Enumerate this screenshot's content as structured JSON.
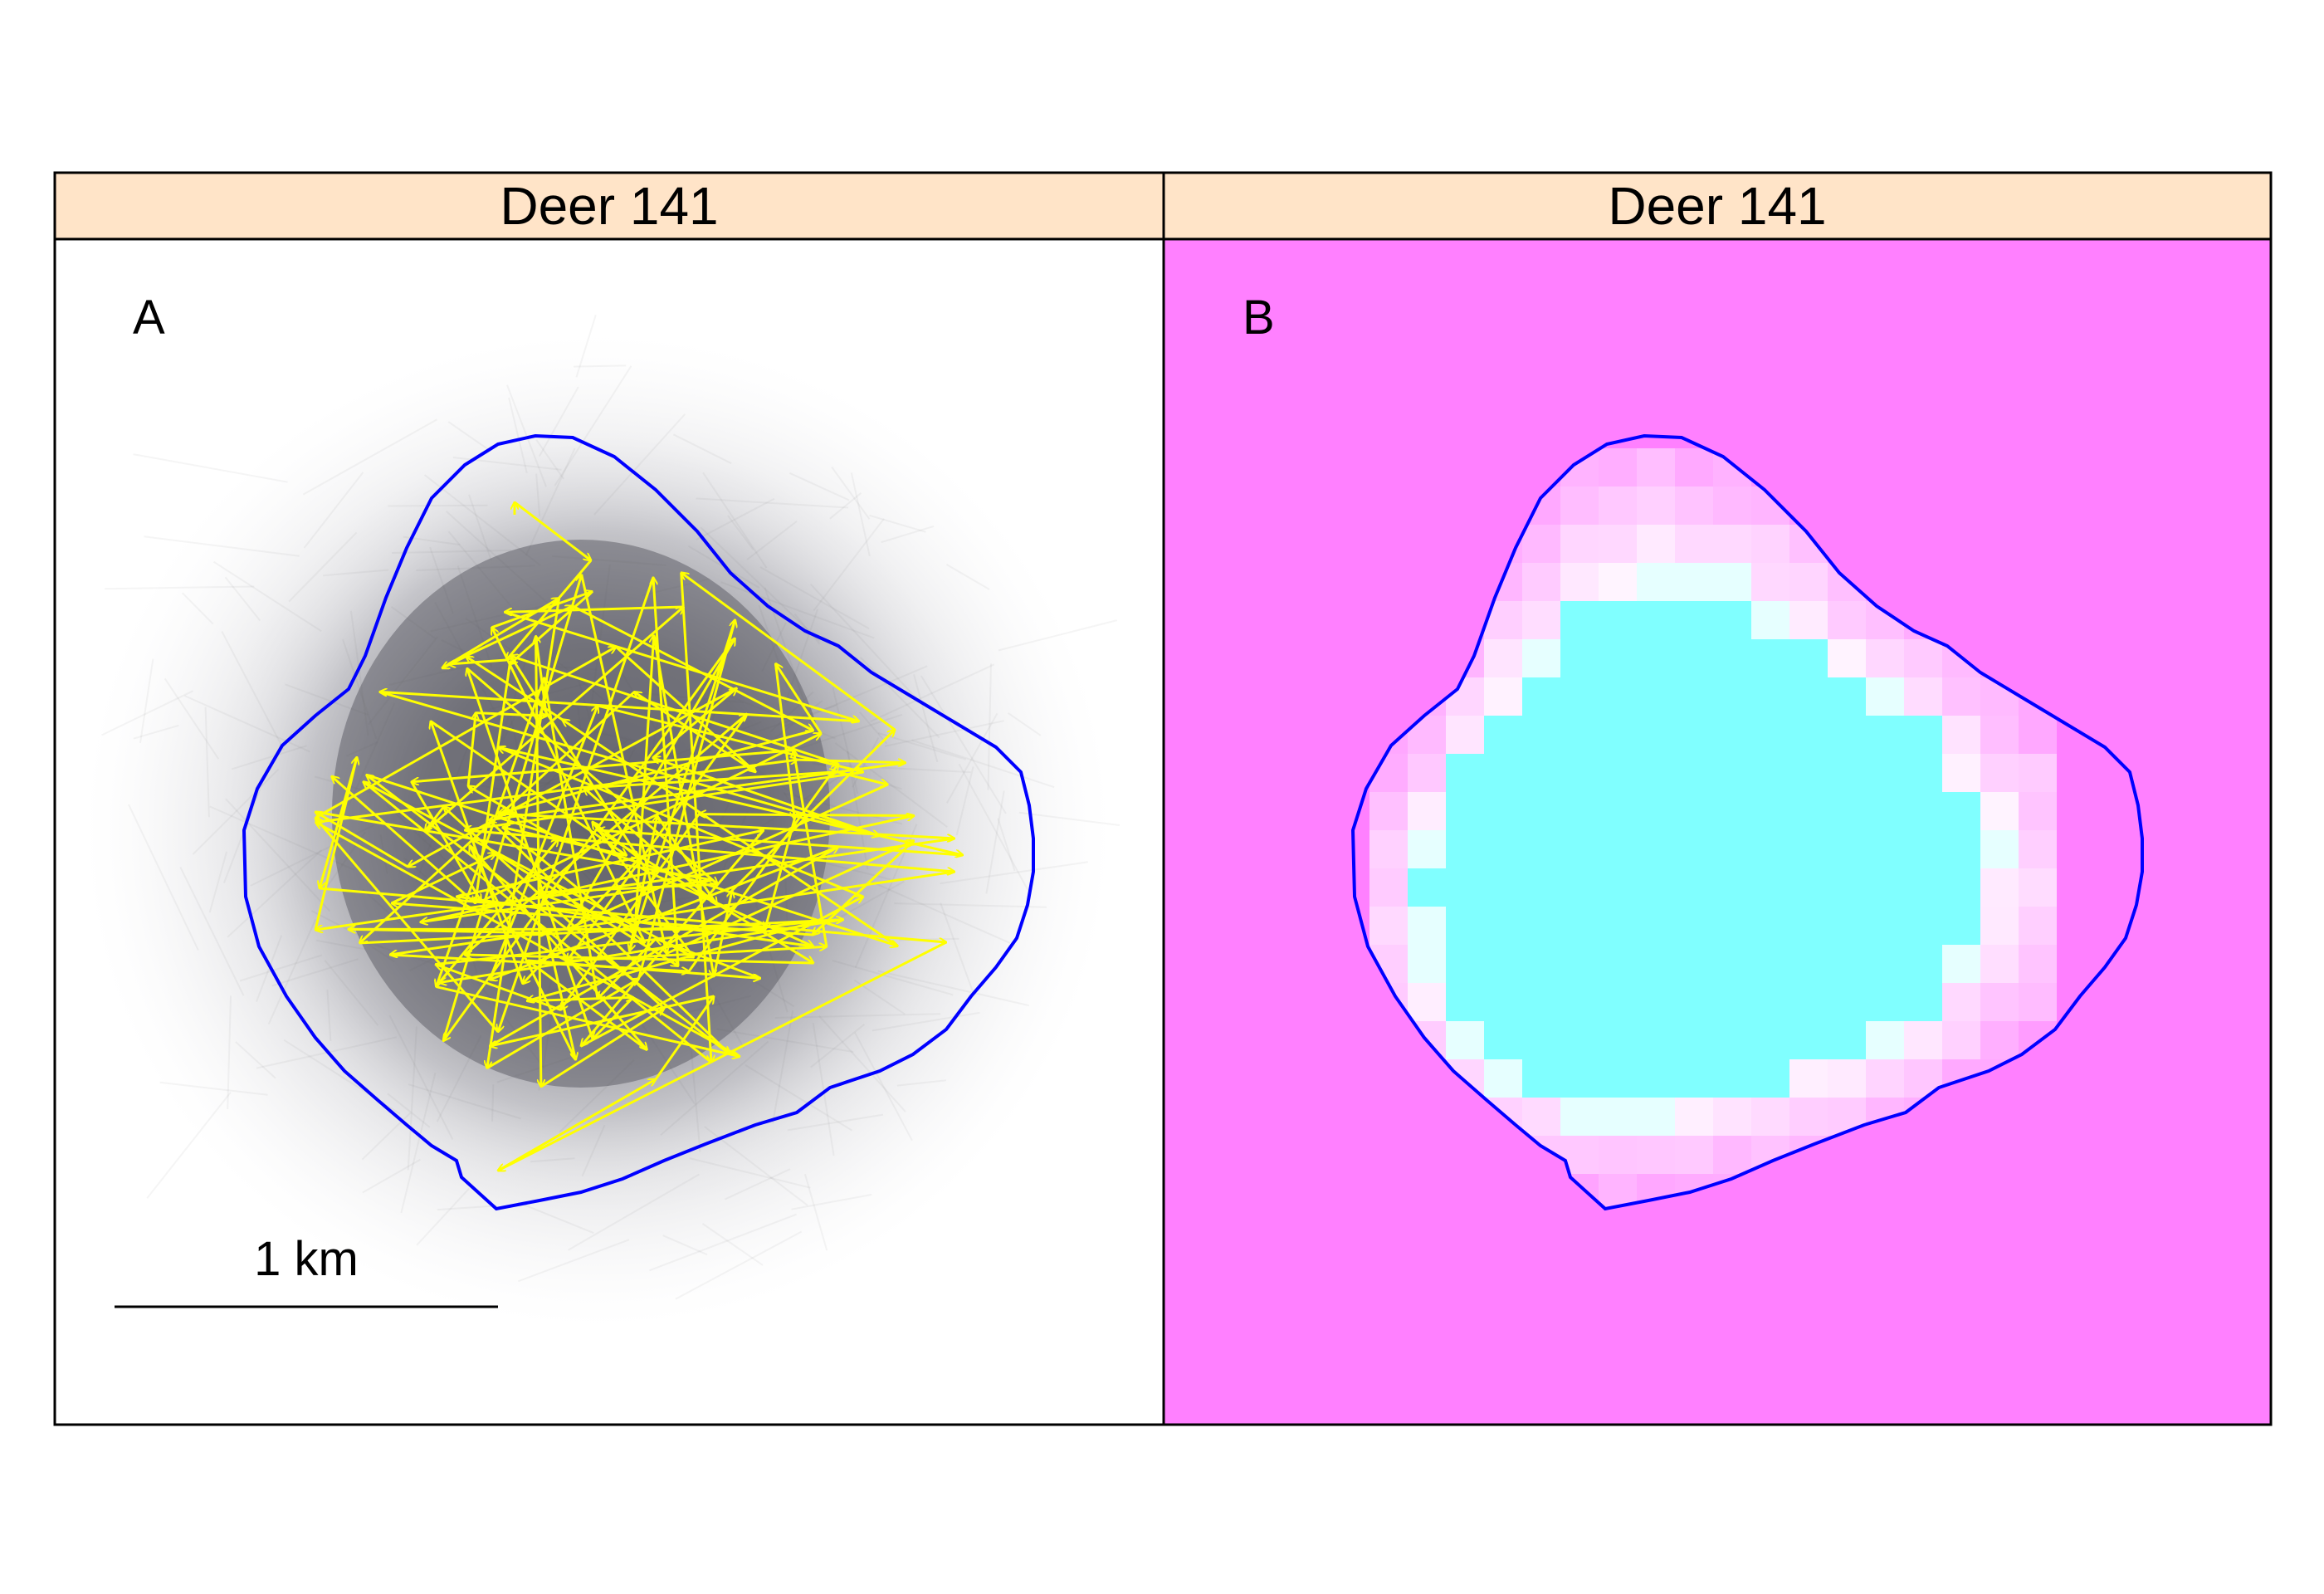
{
  "panels": [
    {
      "strip_title": "Deer 141",
      "letter": "A",
      "scale_label": "1 km"
    },
    {
      "strip_title": "Deer 141",
      "letter": "B"
    }
  ],
  "colors": {
    "strip_fill": "#ffe4c8",
    "path_yellow": "#ffff00",
    "boundary_blue": "#0000ff",
    "background_magenta": "#ff80ff",
    "cell_high_cyan": "#80ffff",
    "cell_white": "#ffffff",
    "frame": "#000000"
  },
  "icons": {
    "movement_arrows": "yellow-arrow-path",
    "home_range": "blue-outline",
    "density": "grey-simulated-tracks",
    "raster": "utilization-grid"
  }
}
